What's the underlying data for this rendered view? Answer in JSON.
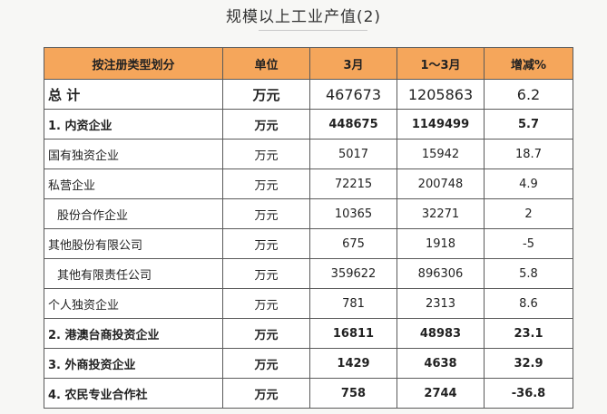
{
  "title": "规模以上工业产值(2)",
  "table": {
    "headers": [
      "按注册类型划分",
      "单位",
      "3月",
      "1～3月",
      "增减%"
    ],
    "rows": [
      {
        "name": "总        计",
        "unit": "万元",
        "march": "467673",
        "q1": "1205863",
        "change": "6.2",
        "style": "total",
        "indent": false
      },
      {
        "name": "1. 内资企业",
        "unit": "万元",
        "march": "448675",
        "q1": "1149499",
        "change": "5.7",
        "style": "bold",
        "indent": false
      },
      {
        "name": "国有独资企业",
        "unit": "万元",
        "march": "5017",
        "q1": "15942",
        "change": "18.7",
        "style": "normal",
        "indent": false
      },
      {
        "name": "私营企业",
        "unit": "万元",
        "march": "72215",
        "q1": "200748",
        "change": "4.9",
        "style": "normal",
        "indent": false
      },
      {
        "name": "股份合作企业",
        "unit": "万元",
        "march": "10365",
        "q1": "32271",
        "change": "2",
        "style": "normal",
        "indent": true
      },
      {
        "name": "其他股份有限公司",
        "unit": "万元",
        "march": "675",
        "q1": "1918",
        "change": "-5",
        "style": "normal",
        "indent": false
      },
      {
        "name": "其他有限责任公司",
        "unit": "万元",
        "march": "359622",
        "q1": "896306",
        "change": "5.8",
        "style": "normal",
        "indent": true
      },
      {
        "name": "个人独资企业",
        "unit": "万元",
        "march": "781",
        "q1": "2313",
        "change": "8.6",
        "style": "normal",
        "indent": false
      },
      {
        "name": "2. 港澳台商投资企业",
        "unit": "万元",
        "march": "16811",
        "q1": "48983",
        "change": "23.1",
        "style": "bold",
        "indent": false
      },
      {
        "name": "3. 外商投资企业",
        "unit": "万元",
        "march": "1429",
        "q1": "4638",
        "change": "32.9",
        "style": "bold",
        "indent": false
      },
      {
        "name": "4. 农民专业合作社",
        "unit": "万元",
        "march": "758",
        "q1": "2744",
        "change": "-36.8",
        "style": "bold",
        "indent": false
      }
    ]
  },
  "colors": {
    "header_bg": "#f5a65b",
    "border": "#5a5a5a"
  }
}
